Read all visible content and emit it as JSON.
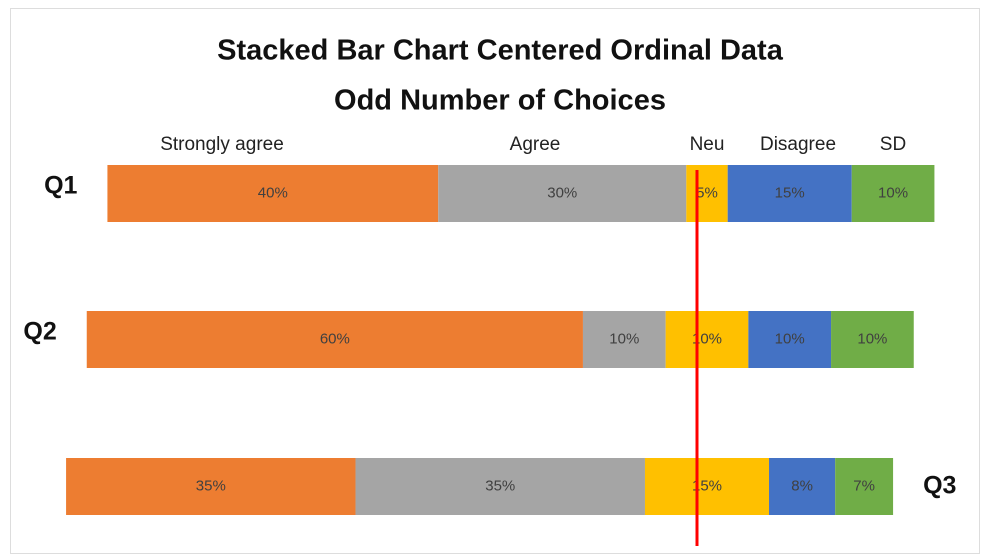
{
  "chart_data": {
    "type": "centered-stacked-bar",
    "title": "Stacked Bar Chart Centered Ordinal Data",
    "subtitle": "Odd Number of Choices",
    "categories": [
      "Q1",
      "Q2",
      "Q3"
    ],
    "series": [
      {
        "name": "Strongly agree",
        "color": "#ed7d31",
        "values": [
          40,
          60,
          35
        ],
        "value_labels": [
          "40%",
          "60%",
          "35%"
        ]
      },
      {
        "name": "Agree",
        "color": "#a5a5a5",
        "values": [
          30,
          10,
          35
        ],
        "value_labels": [
          "30%",
          "10%",
          "35%"
        ]
      },
      {
        "name": "Neu",
        "color": "#ffc000",
        "values": [
          5,
          10,
          15
        ],
        "value_labels": [
          "5%",
          "10%",
          "15%"
        ]
      },
      {
        "name": "Disagree",
        "color": "#4472c4",
        "values": [
          15,
          10,
          8
        ],
        "value_labels": [
          "15%",
          "10%",
          "8%"
        ]
      },
      {
        "name": "SD",
        "color": "#70ad47",
        "values": [
          10,
          10,
          7
        ],
        "value_labels": [
          "10%",
          "10%",
          "7%"
        ]
      }
    ]
  }
}
